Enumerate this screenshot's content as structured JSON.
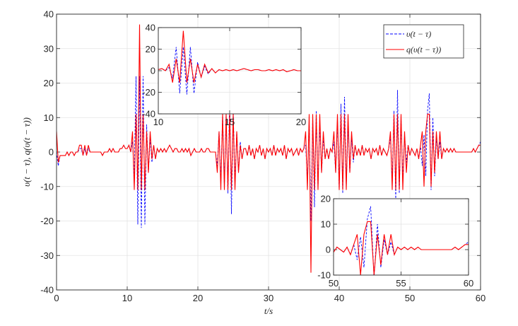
{
  "chart_data": {
    "type": "line",
    "xlabel": "t/s",
    "ylabel": "υ(t − τ), q(υ(t − τ))",
    "grid": true,
    "legend_placement": "top-right",
    "x_start": 0,
    "x_step": 0.25,
    "main": {
      "xlim": [
        0,
        60
      ],
      "ylim": [
        -40,
        40
      ],
      "xticks": [
        "0",
        "10",
        "20",
        "30",
        "40",
        "50",
        "60"
      ],
      "yticks": [
        "-40",
        "-30",
        "-20",
        "-10",
        "0",
        "10",
        "20",
        "30",
        "40"
      ]
    },
    "insets": [
      {
        "xlim": [
          10,
          20
        ],
        "ylim": [
          -40,
          40
        ],
        "xticks": [
          "10",
          "15",
          "20"
        ],
        "yticks": [
          "-40",
          "-20",
          "0",
          "20",
          "40"
        ]
      },
      {
        "xlim": [
          50,
          60
        ],
        "ylim": [
          -10,
          20
        ],
        "xticks": [
          "50",
          "55",
          "60"
        ],
        "yticks": [
          "-10",
          "0",
          "10",
          "20"
        ]
      }
    ],
    "series": [
      {
        "name": "υ(t − τ)",
        "color": "#0000ff",
        "style": "dashed",
        "values": [
          0,
          -4,
          -1,
          -1,
          -1,
          -1,
          0,
          -1,
          0,
          0,
          -1,
          0,
          0,
          1,
          1,
          -1,
          1,
          -1,
          1,
          0,
          0,
          0,
          0,
          0,
          0,
          0,
          -1,
          0,
          0,
          0,
          1,
          0,
          1,
          0,
          0,
          0,
          1,
          1,
          2,
          1,
          1,
          2,
          0,
          3,
          -7,
          22,
          -21,
          22,
          -22,
          22,
          -21,
          8,
          -6,
          4,
          -3,
          2,
          -2,
          1,
          0,
          1,
          0,
          1,
          0,
          1,
          2,
          1,
          0,
          1,
          1,
          0,
          0,
          1,
          0,
          1,
          0,
          1,
          -1,
          0,
          1,
          0,
          0,
          0,
          1,
          0,
          0,
          1,
          1,
          0,
          0,
          0,
          0,
          -4,
          6,
          -9,
          11,
          -10,
          11,
          -12,
          16,
          -18,
          12,
          -9,
          6,
          -6,
          3,
          -2,
          1,
          1,
          -1,
          2,
          -1,
          1,
          -2,
          1,
          0,
          2,
          -1,
          1,
          -2,
          1,
          0,
          1,
          -1,
          2,
          -1,
          1,
          0,
          1,
          -1,
          2,
          -2,
          1,
          0,
          1,
          -1,
          0,
          1,
          -1,
          1,
          0,
          1,
          2,
          -8,
          9,
          -20,
          10,
          -16,
          12,
          -10,
          8,
          -6,
          4,
          -2,
          1,
          -2,
          1,
          0,
          3,
          -6,
          9,
          -11,
          14,
          -12,
          16,
          -10,
          8,
          -6,
          4,
          -3,
          2,
          -1,
          1,
          -1,
          2,
          -1,
          1,
          0,
          1,
          -2,
          1,
          0,
          1,
          -1,
          2,
          -1,
          1,
          0,
          -1,
          1,
          4,
          -8,
          12,
          -14,
          18,
          -12,
          10,
          -8,
          5,
          -3,
          2,
          -1,
          1,
          0,
          -1,
          1,
          -2,
          2,
          -4,
          5,
          -7,
          12,
          17,
          -11,
          10,
          -7,
          4,
          -2,
          3,
          -2,
          1,
          0,
          1,
          0,
          1,
          0,
          1,
          0,
          0,
          0,
          0,
          0,
          0,
          0,
          0,
          0,
          0,
          1,
          0,
          1,
          2,
          3
        ]
      },
      {
        "name": "q(υ(t − τ))",
        "color": "#ff0000",
        "style": "solid",
        "values": [
          6,
          -3,
          -1,
          -1,
          -1,
          -1,
          0,
          -1,
          0,
          0,
          -1,
          0,
          0,
          2,
          2,
          -1,
          2,
          -1,
          2,
          0,
          0,
          0,
          0,
          0,
          0,
          0,
          -1,
          0,
          0,
          0,
          1,
          0,
          1,
          0,
          0,
          0,
          1,
          1,
          2,
          1,
          1,
          2,
          0,
          6,
          -11,
          11,
          -11,
          37,
          -11,
          11,
          -11,
          6,
          -6,
          6,
          -2,
          2,
          -2,
          1,
          0,
          1,
          0,
          1,
          0,
          1,
          2,
          1,
          0,
          1,
          1,
          0,
          0,
          1,
          0,
          1,
          0,
          1,
          -1,
          0,
          1,
          0,
          0,
          0,
          1,
          0,
          0,
          1,
          1,
          0,
          0,
          0,
          0,
          -6,
          6,
          -11,
          11,
          -11,
          11,
          -11,
          11,
          -11,
          11,
          -11,
          6,
          -6,
          2,
          -2,
          1,
          1,
          -1,
          2,
          -1,
          1,
          -2,
          1,
          0,
          2,
          -1,
          1,
          -2,
          1,
          0,
          1,
          -1,
          2,
          -1,
          1,
          0,
          1,
          -1,
          2,
          -2,
          1,
          0,
          1,
          -1,
          0,
          1,
          -1,
          1,
          0,
          1,
          6,
          -11,
          11,
          -35,
          11,
          -11,
          11,
          -11,
          11,
          -6,
          6,
          -2,
          1,
          -2,
          1,
          0,
          6,
          -6,
          11,
          -11,
          11,
          -11,
          11,
          -11,
          11,
          -6,
          6,
          -2,
          2,
          -1,
          1,
          -1,
          2,
          -1,
          1,
          0,
          1,
          -2,
          1,
          0,
          1,
          -1,
          2,
          -1,
          1,
          0,
          -1,
          1,
          6,
          -11,
          11,
          -11,
          11,
          -11,
          11,
          -11,
          6,
          -6,
          2,
          -1,
          1,
          0,
          -1,
          1,
          -2,
          2,
          6,
          -10,
          6,
          11,
          11,
          -10,
          6,
          -6,
          6,
          -2,
          6,
          -2,
          1,
          0,
          1,
          0,
          1,
          0,
          1,
          0,
          0,
          0,
          0,
          0,
          0,
          0,
          0,
          0,
          0,
          1,
          0,
          1,
          2,
          2
        ]
      }
    ]
  }
}
